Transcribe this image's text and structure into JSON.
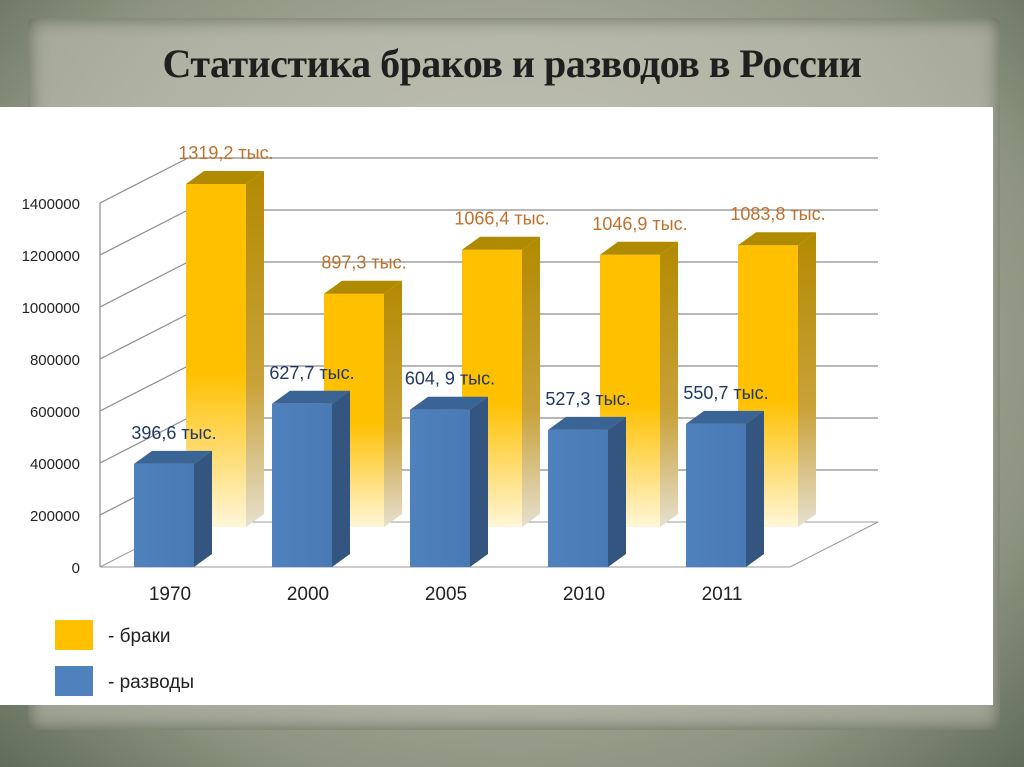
{
  "slide": {
    "title": "Статистика браков и разводов в России"
  },
  "colors": {
    "marriages": "#ffc000",
    "marriages_dark": "#b08a00",
    "divorces": "#4f81bd",
    "divorces_dark": "#33557f",
    "marriage_label": "#c0702a",
    "divorce_label": "#1f3864"
  },
  "chart_data": {
    "type": "bar",
    "title": "",
    "xlabel": "",
    "ylabel": "",
    "ylim": [
      0,
      1400000
    ],
    "yticks": [
      "0",
      "200000",
      "400000",
      "600000",
      "800000",
      "1000000",
      "1200000",
      "1400000"
    ],
    "categories": [
      "1970",
      "2000",
      "2005",
      "2010",
      "2011"
    ],
    "grid": true,
    "legend_placement": "bottom-left",
    "series": [
      {
        "key": "marriages",
        "name": "- браки",
        "values": [
          1319200,
          897300,
          1066400,
          1046900,
          1083800
        ],
        "labels": [
          "1319,2 тыс.",
          "897,3 тыс.",
          "1066,4 тыс.",
          "1046,9 тыс.",
          "1083,8 тыс."
        ]
      },
      {
        "key": "divorces",
        "name": "- разводы",
        "values": [
          396600,
          627700,
          604900,
          527300,
          550700
        ],
        "labels": [
          "396,6 тыс.",
          "627,7 тыс.",
          "604, 9 тыс.",
          "527,3 тыс.",
          "550,7 тыс."
        ]
      }
    ]
  }
}
